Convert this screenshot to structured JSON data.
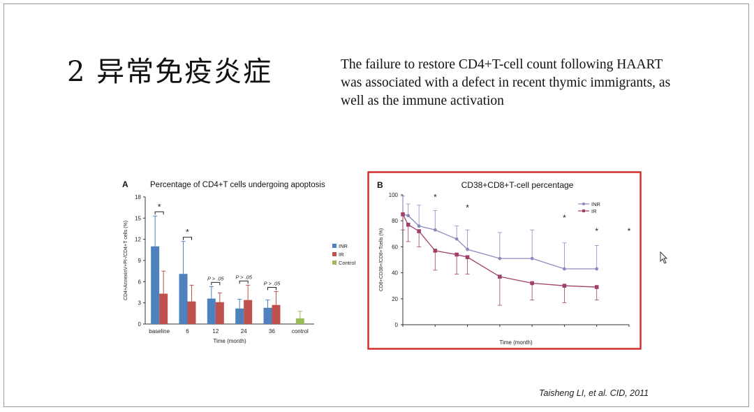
{
  "slide": {
    "title": "2 异常免疫炎症",
    "description": [
      "The failure to restore CD4+T-cell count following HAART",
      "was associated with a defect in recent thymic immigrants, as",
      "well as the immune activation"
    ],
    "citation": "Taisheng LI, et al. CID, 2011"
  },
  "chart_data": [
    {
      "type": "bar",
      "panel": "A",
      "title": "Percentage of CD4+T cells undergoing apoptosis",
      "ylabel": "CD4+AnnexinV+PI-/CD4+T cells (%)",
      "xlabel": "Time (month)",
      "ylim": [
        0,
        18
      ],
      "yticks": [
        0,
        3,
        6,
        9,
        12,
        15,
        18
      ],
      "categories": [
        "baseline",
        "6",
        "12",
        "24",
        "36",
        "control"
      ],
      "series": [
        {
          "name": "INR",
          "color": "#4f81bd",
          "values": [
            11.0,
            7.1,
            3.6,
            2.2,
            2.3,
            null
          ],
          "errors": [
            4.3,
            4.6,
            1.7,
            1.3,
            1.1,
            null
          ]
        },
        {
          "name": "IR",
          "color": "#c0504d",
          "values": [
            4.3,
            3.2,
            3.1,
            3.4,
            2.7,
            null
          ],
          "errors": [
            3.2,
            2.3,
            1.3,
            2.1,
            1.9,
            null
          ]
        },
        {
          "name": "Control",
          "color": "#9bbb59",
          "values": [
            null,
            null,
            null,
            null,
            null,
            0.8
          ],
          "errors": [
            null,
            null,
            null,
            null,
            null,
            1.0
          ]
        }
      ],
      "annotations": [
        "*",
        "*",
        "P > .05",
        "P > .05",
        "P > .05"
      ],
      "legend": "right"
    },
    {
      "type": "line",
      "panel": "B",
      "title": "CD38+CD8+T-cell percentage",
      "ylabel": "CD8+CD38+/CD8+Tcells (%)",
      "xlabel": "Time (month)",
      "ylim": [
        0,
        100
      ],
      "yticks": [
        0,
        20,
        40,
        60,
        80,
        100
      ],
      "x": [
        0,
        1,
        3,
        6,
        10,
        12,
        18,
        24,
        30,
        36,
        42
      ],
      "series": [
        {
          "name": "INR",
          "color": "#8e89bd",
          "values": [
            85,
            84,
            76,
            73,
            66,
            58,
            51,
            51,
            43,
            43,
            null
          ],
          "errors": [
            14,
            9,
            16,
            15,
            10,
            15,
            20,
            22,
            20,
            18,
            null
          ]
        },
        {
          "name": "IR",
          "color": "#a0406a",
          "values": [
            85,
            77,
            72,
            57,
            54,
            52,
            37,
            32,
            30,
            29,
            null
          ],
          "errors": [
            12,
            13,
            12,
            15,
            15,
            13,
            22,
            13,
            13,
            10,
            null
          ]
        }
      ],
      "significance": [
        "*",
        "*",
        "*",
        "*",
        "*"
      ],
      "legend": "top-right"
    }
  ]
}
